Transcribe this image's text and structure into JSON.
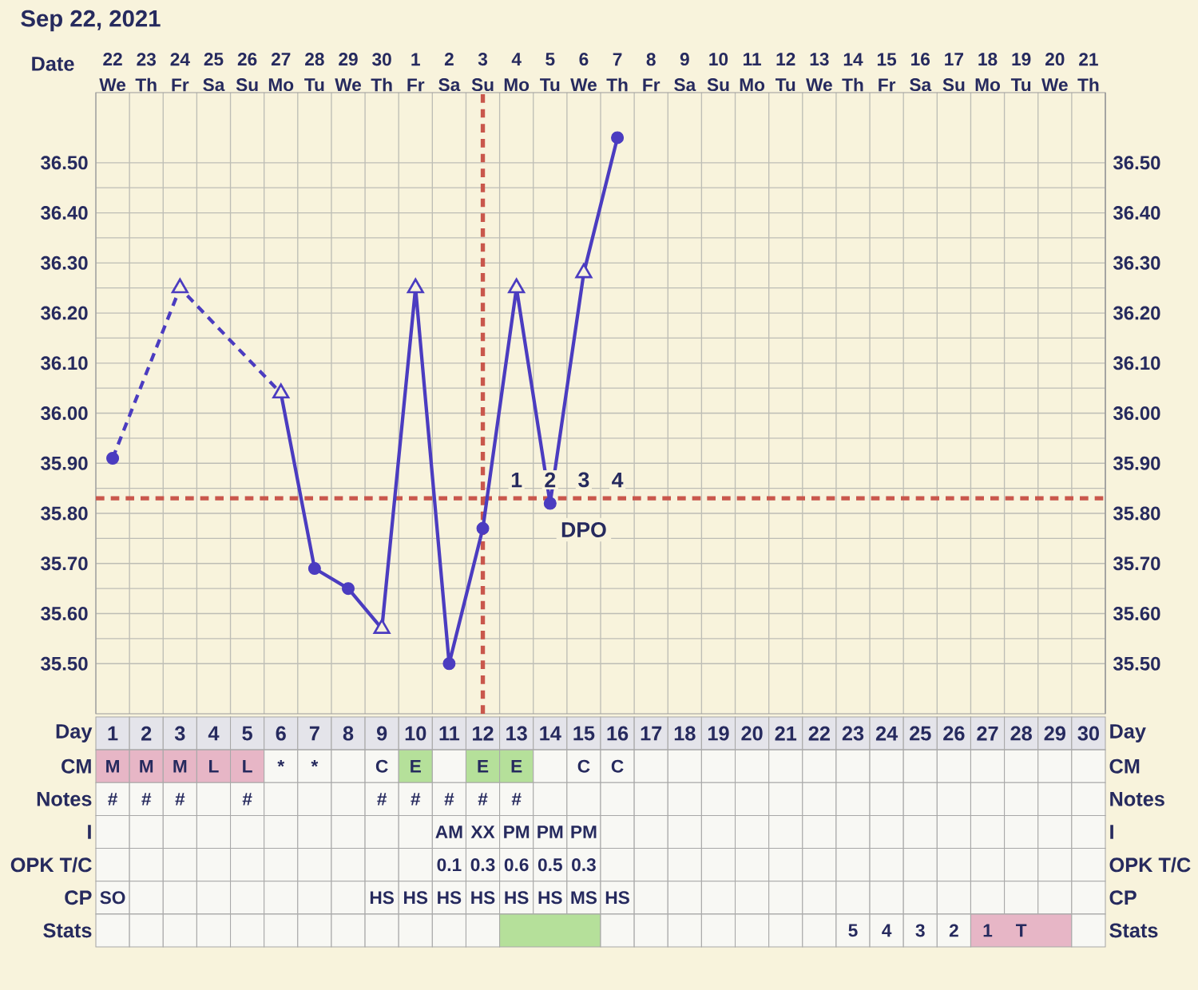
{
  "chart_data": [
    {
      "type": "line",
      "title": "Sep 22, 2021",
      "xlabel": "Date",
      "categories": [
        "22 We",
        "23 Th",
        "24 Fr",
        "25 Sa",
        "26 Su",
        "27 Mo",
        "28 Tu",
        "29 We",
        "30 Th",
        "1 Fr",
        "2 Sa",
        "3 Su",
        "4 Mo",
        "5 Tu",
        "6 We",
        "7 Th",
        "8 Fr",
        "9 Sa",
        "10 Su",
        "11 Mo",
        "12 Tu",
        "13 We",
        "14 Th",
        "15 Fr",
        "16 Sa",
        "17 Su",
        "18 Mo",
        "19 Tu",
        "20 We",
        "21 Th"
      ],
      "series": [
        {
          "type": "line",
          "line_style": "dashed",
          "color": "#4b3cc0",
          "values": [
            35.91,
            null,
            36.25,
            null,
            null,
            36.04,
            null,
            null,
            null,
            null,
            null,
            null,
            null,
            null,
            null,
            null,
            null,
            null,
            null,
            null,
            null,
            null,
            null,
            null,
            null,
            null,
            null,
            null,
            null,
            null
          ]
        },
        {
          "type": "line",
          "line_style": "solid",
          "color": "#4b3cc0",
          "values": [
            null,
            null,
            null,
            null,
            null,
            36.04,
            35.69,
            35.65,
            35.57,
            36.25,
            35.5,
            35.77,
            36.25,
            35.82,
            36.28,
            36.55,
            null,
            null,
            null,
            null,
            null,
            null,
            null,
            null,
            null,
            null,
            null,
            null,
            null,
            null
          ]
        },
        {
          "type": "scatter",
          "marker": "circle",
          "color": "#4b3cc0",
          "values": [
            35.91,
            null,
            null,
            null,
            null,
            null,
            35.69,
            35.65,
            null,
            null,
            35.5,
            35.77,
            null,
            35.82,
            null,
            36.55,
            null,
            null,
            null,
            null,
            null,
            null,
            null,
            null,
            null,
            null,
            null,
            null,
            null,
            null
          ]
        },
        {
          "type": "scatter",
          "marker": "triangle",
          "color": "#4b3cc0",
          "values": [
            null,
            null,
            36.25,
            null,
            null,
            36.04,
            null,
            null,
            35.57,
            36.25,
            null,
            null,
            36.25,
            null,
            36.28,
            null,
            null,
            null,
            null,
            null,
            null,
            null,
            null,
            null,
            null,
            null,
            null,
            null,
            null,
            null
          ]
        }
      ],
      "ylim": [
        35.4,
        36.64
      ],
      "yticks": [
        {
          "value": 35.5,
          "label": "35.50"
        },
        {
          "value": 35.6,
          "label": "35.60"
        },
        {
          "value": 35.7,
          "label": "35.70"
        },
        {
          "value": 35.8,
          "label": "35.80"
        },
        {
          "value": 35.9,
          "label": "35.90"
        },
        {
          "value": 36.0,
          "label": "36.00"
        },
        {
          "value": 36.1,
          "label": "36.10"
        },
        {
          "value": 36.2,
          "label": "36.20"
        },
        {
          "value": 36.3,
          "label": "36.30"
        },
        {
          "value": 36.4,
          "label": "36.40"
        },
        {
          "value": 36.5,
          "label": "36.50"
        }
      ],
      "y2lim": [
        35.4,
        36.64
      ],
      "y2ticks": [
        {
          "value": 35.5,
          "label": "35.50"
        },
        {
          "value": 35.6,
          "label": "35.60"
        },
        {
          "value": 35.7,
          "label": "35.70"
        },
        {
          "value": 35.8,
          "label": "35.80"
        },
        {
          "value": 35.9,
          "label": "35.90"
        },
        {
          "value": 36.0,
          "label": "36.00"
        },
        {
          "value": 36.1,
          "label": "36.10"
        },
        {
          "value": 36.2,
          "label": "36.20"
        },
        {
          "value": 36.3,
          "label": "36.30"
        },
        {
          "value": 36.4,
          "label": "36.40"
        },
        {
          "value": 36.5,
          "label": "36.50"
        }
      ],
      "grid": true,
      "ref_lines": [
        {
          "axis": "y",
          "value": 35.83,
          "color": "#c9574c",
          "line_style": "dashed"
        },
        {
          "axis": "x",
          "value": "3 Su",
          "color": "#c9574c",
          "line_style": "dashed"
        }
      ],
      "annotations": [
        "1",
        "2",
        "3",
        "4",
        "DPO"
      ]
    },
    {
      "type": "heatmap",
      "xlabel": "Day",
      "categories": [
        "1",
        "2",
        "3",
        "4",
        "5",
        "6",
        "7",
        "8",
        "9",
        "10",
        "11",
        "12",
        "13",
        "14",
        "15",
        "16",
        "17",
        "18",
        "19",
        "20",
        "21",
        "22",
        "23",
        "24",
        "25",
        "26",
        "27",
        "28",
        "29",
        "30"
      ],
      "y_categories": [
        "CM",
        "Notes",
        "I",
        "OPK T/C",
        "CP",
        "Stats"
      ],
      "y2_categories": [
        "CM",
        "Notes",
        "I",
        "OPK T/C",
        "CP",
        "Stats"
      ],
      "cells": [
        [
          null,
          null,
          null,
          null,
          null,
          null,
          null,
          null,
          null,
          null,
          null,
          null,
          null,
          null,
          null,
          null,
          null,
          null,
          null,
          null,
          null,
          null,
          null,
          null,
          null,
          null,
          null,
          null,
          null,
          null
        ],
        [
          null,
          null,
          null,
          null,
          null,
          null,
          null,
          null,
          null,
          null,
          null,
          null,
          null,
          null,
          null,
          null,
          null,
          null,
          null,
          null,
          null,
          null,
          null,
          null,
          null,
          null,
          null,
          null,
          null,
          null
        ],
        [
          null,
          null,
          null,
          null,
          null,
          null,
          null,
          null,
          null,
          null,
          null,
          null,
          null,
          null,
          null,
          null,
          null,
          null,
          null,
          null,
          null,
          null,
          null,
          null,
          null,
          null,
          null,
          null,
          null,
          null
        ],
        [
          null,
          null,
          null,
          null,
          null,
          null,
          null,
          null,
          null,
          null,
          null,
          null,
          null,
          null,
          null,
          null,
          null,
          null,
          null,
          null,
          null,
          null,
          null,
          null,
          null,
          null,
          null,
          null,
          null,
          null
        ],
        [
          null,
          null,
          null,
          null,
          null,
          null,
          null,
          null,
          null,
          null,
          null,
          null,
          null,
          null,
          null,
          null,
          null,
          null,
          null,
          null,
          null,
          null,
          null,
          null,
          null,
          null,
          null,
          null,
          null,
          null
        ],
        [
          null,
          null,
          null,
          null,
          null,
          null,
          null,
          null,
          null,
          null,
          null,
          null,
          null,
          null,
          null,
          null,
          null,
          null,
          null,
          null,
          null,
          null,
          null,
          null,
          null,
          null,
          null,
          null,
          null,
          null
        ]
      ],
      "cell_labels": [
        [
          "M",
          "M",
          "M",
          "L",
          "L",
          "*",
          "*",
          null,
          "C",
          "E",
          null,
          "E",
          "E",
          null,
          "C",
          "C",
          null,
          null,
          null,
          null,
          null,
          null,
          null,
          null,
          null,
          null,
          null,
          null,
          null,
          null
        ],
        [
          "#",
          "#",
          "#",
          null,
          "#",
          null,
          null,
          null,
          "#",
          "#",
          "#",
          "#",
          "#",
          null,
          null,
          null,
          null,
          null,
          null,
          null,
          null,
          null,
          null,
          null,
          null,
          null,
          null,
          null,
          null,
          null
        ],
        [
          null,
          null,
          null,
          null,
          null,
          null,
          null,
          null,
          null,
          null,
          "AM",
          "XX",
          "PM",
          "PM",
          "PM",
          null,
          null,
          null,
          null,
          null,
          null,
          null,
          null,
          null,
          null,
          null,
          null,
          null,
          null,
          null
        ],
        [
          null,
          null,
          null,
          null,
          null,
          null,
          null,
          null,
          null,
          null,
          "0.1",
          "0.3",
          "0.6",
          "0.5",
          "0.3",
          null,
          null,
          null,
          null,
          null,
          null,
          null,
          null,
          null,
          null,
          null,
          null,
          null,
          null,
          null
        ],
        [
          "SO",
          null,
          null,
          null,
          null,
          null,
          null,
          null,
          "HS",
          "HS",
          "HS",
          "HS",
          "HS",
          "HS",
          "MS",
          "HS",
          null,
          null,
          null,
          null,
          null,
          null,
          null,
          null,
          null,
          null,
          null,
          null,
          null,
          null
        ],
        [
          null,
          null,
          null,
          null,
          null,
          null,
          null,
          null,
          null,
          null,
          null,
          null,
          null,
          null,
          null,
          null,
          null,
          null,
          null,
          null,
          null,
          null,
          "5",
          "4",
          "3",
          "2",
          "1",
          "T",
          null,
          null
        ]
      ],
      "colors": [
        [
          "#e7b6c6",
          "#e7b6c6",
          "#e7b6c6",
          "#e7b6c6",
          "#e7b6c6",
          null,
          null,
          null,
          null,
          "#b5e09a",
          null,
          "#b5e09a",
          "#b5e09a",
          null,
          null,
          null,
          null,
          null,
          null,
          null,
          null,
          null,
          null,
          null,
          null,
          null,
          null,
          null,
          null,
          null
        ],
        [
          null,
          null,
          null,
          null,
          null,
          null,
          null,
          null,
          null,
          null,
          null,
          null,
          null,
          null,
          null,
          null,
          null,
          null,
          null,
          null,
          null,
          null,
          null,
          null,
          null,
          null,
          null,
          null,
          null,
          null
        ],
        [
          null,
          null,
          null,
          null,
          null,
          null,
          null,
          null,
          null,
          null,
          null,
          null,
          null,
          null,
          null,
          null,
          null,
          null,
          null,
          null,
          null,
          null,
          null,
          null,
          null,
          null,
          null,
          null,
          null,
          null
        ],
        [
          null,
          null,
          null,
          null,
          null,
          null,
          null,
          null,
          null,
          null,
          null,
          null,
          null,
          null,
          null,
          null,
          null,
          null,
          null,
          null,
          null,
          null,
          null,
          null,
          null,
          null,
          null,
          null,
          null,
          null
        ],
        [
          null,
          null,
          null,
          null,
          null,
          null,
          null,
          null,
          null,
          null,
          null,
          null,
          null,
          null,
          null,
          null,
          null,
          null,
          null,
          null,
          null,
          null,
          null,
          null,
          null,
          null,
          null,
          null,
          null,
          null
        ],
        [
          null,
          null,
          null,
          null,
          null,
          null,
          null,
          null,
          null,
          null,
          null,
          null,
          null,
          null,
          null,
          null,
          null,
          null,
          null,
          null,
          null,
          null,
          null,
          null,
          null,
          null,
          null,
          null,
          null,
          null
        ]
      ],
      "bands": [
        {
          "axis": "x",
          "from": "13",
          "to": "15",
          "color": "#b5e09a"
        },
        {
          "axis": "x",
          "from": "27",
          "to": "29",
          "color": "#e7b6c6"
        }
      ]
    }
  ]
}
